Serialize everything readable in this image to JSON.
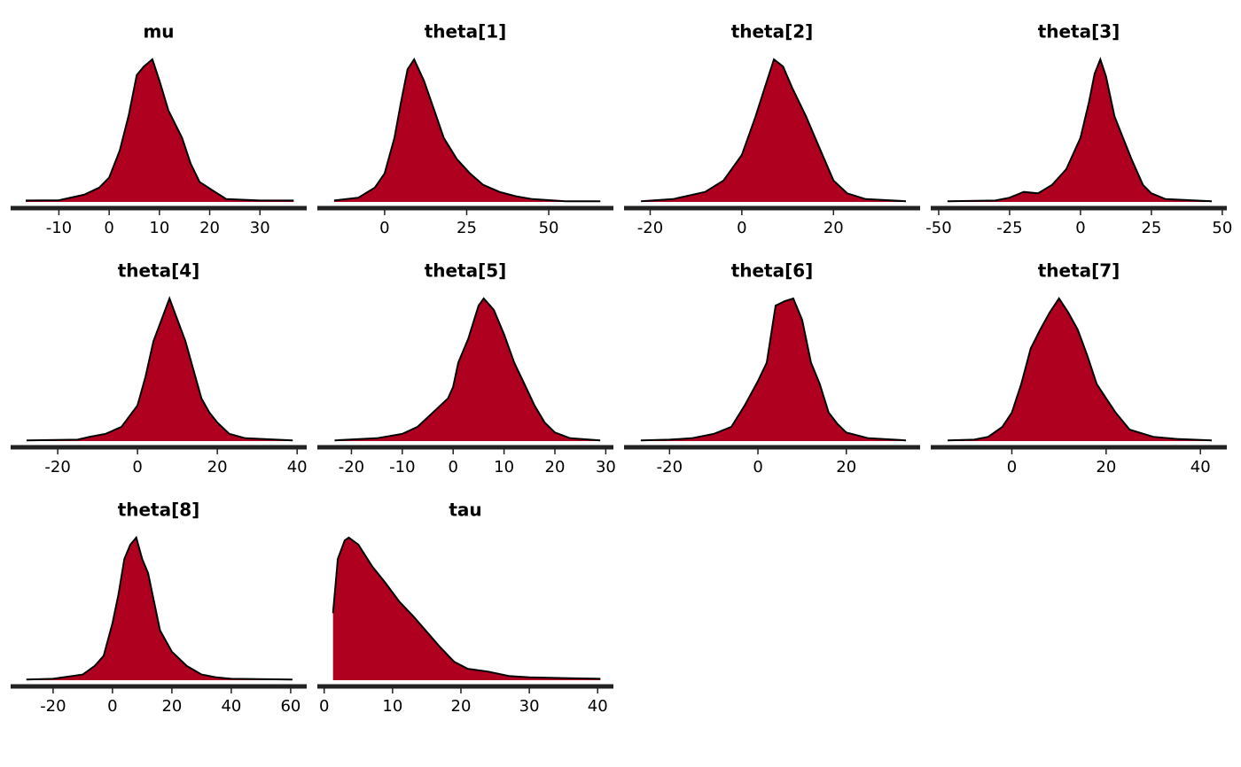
{
  "chart_data": [
    {
      "type": "area",
      "title": "mu",
      "color": "#b0001f",
      "xlim": [
        -19.6,
        39.3
      ],
      "ylim": [
        0,
        1
      ],
      "xticks": [
        -10,
        0,
        10,
        20,
        30
      ],
      "x": [
        -16.6,
        -10,
        -5,
        -2,
        0,
        2.1,
        3.9,
        5.5,
        6.9,
        8.6,
        10,
        11.8,
        14.5,
        16.2,
        18,
        20.6,
        23.3,
        30,
        36.7
      ],
      "values": [
        0.01,
        0.012,
        0.05,
        0.1,
        0.17,
        0.36,
        0.61,
        0.89,
        0.95,
        1.0,
        0.85,
        0.64,
        0.45,
        0.27,
        0.14,
        0.08,
        0.02,
        0.01,
        0.01
      ]
    },
    {
      "type": "area",
      "title": "theta[1]",
      "color": "#b0001f",
      "xlim": [
        -20.5,
        69.7
      ],
      "ylim": [
        0,
        1
      ],
      "xticks": [
        0,
        25,
        50
      ],
      "x": [
        -15.4,
        -8,
        -3,
        0,
        3,
        5,
        7,
        9,
        12,
        15,
        18,
        22,
        26,
        30,
        35,
        40,
        45,
        55,
        65.7
      ],
      "values": [
        0.01,
        0.03,
        0.1,
        0.2,
        0.45,
        0.7,
        0.93,
        1.0,
        0.85,
        0.65,
        0.45,
        0.3,
        0.2,
        0.12,
        0.07,
        0.04,
        0.02,
        0.005,
        0.005
      ]
    },
    {
      "type": "area",
      "title": "theta[2]",
      "color": "#b0001f",
      "xlim": [
        -25.7,
        38.9
      ],
      "ylim": [
        0,
        1
      ],
      "xticks": [
        -20,
        0,
        20
      ],
      "x": [
        -22,
        -15,
        -8,
        -4,
        0,
        3,
        5,
        7,
        9,
        11,
        14,
        16,
        18,
        20,
        23,
        27,
        35.8
      ],
      "values": [
        0.005,
        0.02,
        0.07,
        0.15,
        0.33,
        0.6,
        0.8,
        1.0,
        0.95,
        0.8,
        0.6,
        0.45,
        0.3,
        0.15,
        0.06,
        0.02,
        0.005
      ]
    },
    {
      "type": "area",
      "title": "theta[3]",
      "color": "#b0001f",
      "xlim": [
        -52.8,
        51.6
      ],
      "ylim": [
        0,
        1
      ],
      "xticks": [
        -50,
        -25,
        0,
        25,
        50
      ],
      "x": [
        -46.9,
        -30,
        -25,
        -20,
        -15,
        -10,
        -5,
        0,
        3,
        5,
        7,
        9,
        12,
        15,
        18,
        22,
        25,
        30,
        46.3
      ],
      "values": [
        0.005,
        0.01,
        0.03,
        0.07,
        0.06,
        0.12,
        0.23,
        0.45,
        0.7,
        0.9,
        1.0,
        0.88,
        0.6,
        0.45,
        0.3,
        0.12,
        0.06,
        0.02,
        0.005
      ]
    },
    {
      "type": "area",
      "title": "theta[4]",
      "color": "#b0001f",
      "xlim": [
        -31.8,
        42.4
      ],
      "ylim": [
        0,
        1
      ],
      "xticks": [
        -20,
        0,
        20,
        40
      ],
      "x": [
        -27.8,
        -15,
        -12,
        -8,
        -4,
        0,
        2,
        4,
        6,
        8,
        10,
        12,
        14,
        16,
        18,
        20,
        23,
        27,
        38.9
      ],
      "values": [
        0.005,
        0.01,
        0.03,
        0.05,
        0.1,
        0.25,
        0.45,
        0.7,
        0.85,
        1.0,
        0.85,
        0.7,
        0.5,
        0.3,
        0.2,
        0.13,
        0.05,
        0.02,
        0.005
      ]
    },
    {
      "type": "area",
      "title": "theta[5]",
      "color": "#b0001f",
      "xlim": [
        -26.7,
        31.5
      ],
      "ylim": [
        0,
        1
      ],
      "xticks": [
        -20,
        -10,
        0,
        10,
        20,
        30
      ],
      "x": [
        -23.3,
        -15,
        -10,
        -7,
        -4,
        -1,
        0,
        1,
        3,
        5,
        6,
        8,
        10,
        12,
        14,
        16,
        18,
        20,
        23,
        28.9
      ],
      "values": [
        0.005,
        0.02,
        0.05,
        0.1,
        0.2,
        0.3,
        0.38,
        0.55,
        0.72,
        0.95,
        1.0,
        0.92,
        0.75,
        0.55,
        0.4,
        0.25,
        0.13,
        0.06,
        0.02,
        0.005
      ]
    },
    {
      "type": "area",
      "title": "theta[6]",
      "color": "#b0001f",
      "xlim": [
        -30.3,
        36.7
      ],
      "ylim": [
        0,
        1
      ],
      "xticks": [
        -20,
        0,
        20
      ],
      "x": [
        -26.5,
        -20,
        -15,
        -10,
        -6,
        -3,
        0,
        2,
        4,
        6,
        8,
        10,
        12,
        14,
        16,
        18,
        20,
        25,
        33.5
      ],
      "values": [
        0.005,
        0.01,
        0.02,
        0.05,
        0.1,
        0.25,
        0.42,
        0.55,
        0.95,
        0.98,
        1.0,
        0.85,
        0.55,
        0.4,
        0.2,
        0.12,
        0.06,
        0.02,
        0.005
      ]
    },
    {
      "type": "area",
      "title": "theta[7]",
      "color": "#b0001f",
      "xlim": [
        -17.2,
        45.6
      ],
      "ylim": [
        0,
        1
      ],
      "xticks": [
        0,
        20,
        40
      ],
      "x": [
        -13.6,
        -8,
        -5,
        -2,
        0,
        2,
        4,
        6,
        8,
        10,
        12,
        14,
        16,
        18,
        20,
        22,
        25,
        30,
        35,
        42.4
      ],
      "values": [
        0.005,
        0.01,
        0.03,
        0.1,
        0.2,
        0.4,
        0.65,
        0.78,
        0.9,
        1.0,
        0.9,
        0.78,
        0.6,
        0.4,
        0.3,
        0.2,
        0.08,
        0.03,
        0.015,
        0.005
      ]
    },
    {
      "type": "area",
      "title": "theta[8]",
      "color": "#b0001f",
      "xlim": [
        -34.3,
        65.4
      ],
      "ylim": [
        0,
        1
      ],
      "xticks": [
        -20,
        0,
        20,
        40,
        60
      ],
      "x": [
        -29,
        -20,
        -10,
        -6,
        -3,
        0,
        2,
        4,
        6,
        8,
        10,
        12,
        14,
        16,
        20,
        25,
        30,
        35,
        40,
        60.6
      ],
      "values": [
        0.005,
        0.01,
        0.04,
        0.1,
        0.17,
        0.4,
        0.6,
        0.85,
        0.95,
        1.0,
        0.85,
        0.75,
        0.55,
        0.35,
        0.2,
        0.1,
        0.04,
        0.02,
        0.01,
        0.005
      ]
    },
    {
      "type": "area",
      "title": "tau",
      "color": "#b0001f",
      "xlim": [
        -1.0,
        42.3
      ],
      "ylim": [
        0,
        1
      ],
      "xticks": [
        0,
        10,
        20,
        30,
        40
      ],
      "x": [
        1.3,
        2,
        3,
        3.6,
        5,
        7,
        9,
        11,
        13,
        15,
        17,
        19,
        21,
        24,
        27,
        30,
        35,
        40.4
      ],
      "values": [
        0.47,
        0.85,
        0.98,
        1.0,
        0.95,
        0.8,
        0.68,
        0.55,
        0.45,
        0.34,
        0.23,
        0.13,
        0.08,
        0.06,
        0.03,
        0.02,
        0.015,
        0.01
      ]
    }
  ]
}
